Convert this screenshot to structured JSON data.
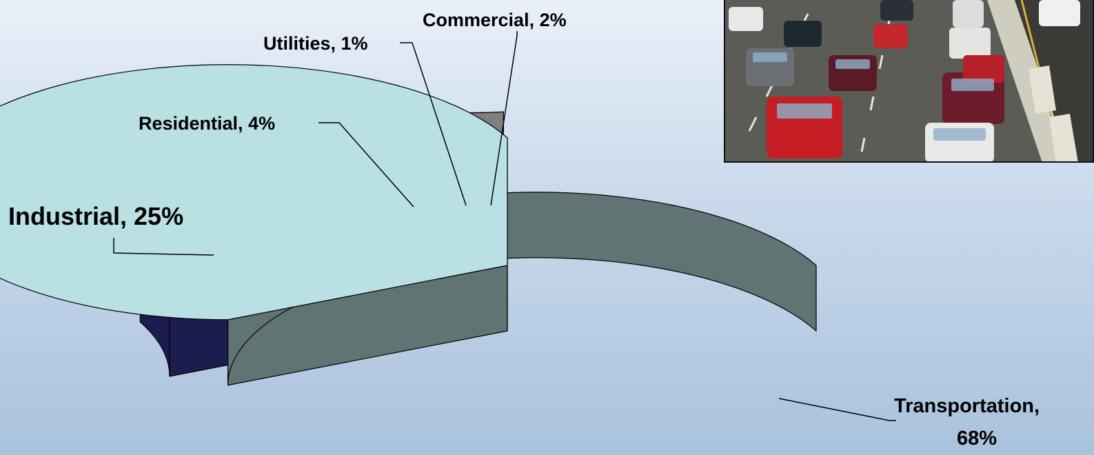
{
  "chart_data": {
    "type": "pie",
    "style": "3d-exploded",
    "slices": [
      {
        "name": "Transportation",
        "value": 68,
        "label": "Transportation,",
        "label2": "68%",
        "top": "#b9e0e3",
        "side": "#607474"
      },
      {
        "name": "Industrial",
        "value": 25,
        "label": "Industrial, 25%",
        "top": "#333399",
        "side": "#1c1c4e"
      },
      {
        "name": "Residential",
        "value": 4,
        "label": "Residential, 4%",
        "top": "#009999",
        "side": "#004d4d"
      },
      {
        "name": "Utilities",
        "value": 1,
        "label": "Utilities, 1%",
        "top": "#99cc00",
        "side": "#4d6600"
      },
      {
        "name": "Commercial",
        "value": 2,
        "label": "Commercial, 2%",
        "top": "#808080",
        "side": "#404040"
      }
    ],
    "legend": "none"
  },
  "photo": {
    "subject": "highway-traffic-photo"
  }
}
